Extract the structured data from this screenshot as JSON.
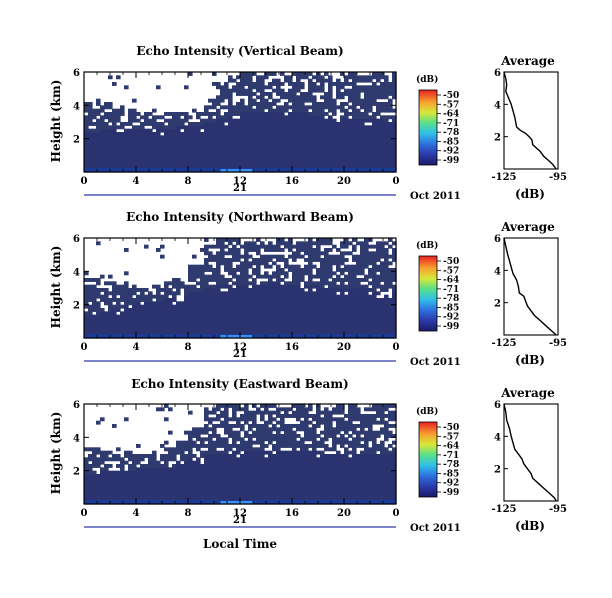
{
  "chart_data": [
    {
      "type": "heatmap",
      "title": "Echo Intensity (Vertical Beam)",
      "ylabel": "Height (km)",
      "x_ticks": [
        "0",
        "4",
        "8",
        "12",
        "16",
        "20",
        "0"
      ],
      "y_ticks": [
        "6",
        "4",
        "2"
      ],
      "xlim": [
        0,
        24
      ],
      "ylim": [
        0,
        6
      ],
      "date_label": "21",
      "month_label": "Oct 2011",
      "colorbar": {
        "title": "(dB)",
        "ticks": [
          "-50",
          "-57",
          "-64",
          "-71",
          "-78",
          "-85",
          "-92",
          "-99"
        ]
      },
      "profile": {
        "title": "Average",
        "xlabel": "(dB)",
        "x_ticks": [
          "-125",
          "-95"
        ],
        "y_ticks": [
          "6",
          "4",
          "2"
        ],
        "xlim": [
          -125,
          -95
        ],
        "points": [
          [
            -125,
            6.0
          ],
          [
            -124,
            5.6
          ],
          [
            -123.5,
            5.2
          ],
          [
            -124,
            4.8
          ],
          [
            -122.5,
            4.4
          ],
          [
            -121,
            4.0
          ],
          [
            -120,
            3.6
          ],
          [
            -119,
            3.2
          ],
          [
            -118.5,
            2.9
          ],
          [
            -118,
            2.6
          ],
          [
            -116,
            2.4
          ],
          [
            -113,
            2.2
          ],
          [
            -111,
            2.0
          ],
          [
            -109.5,
            1.8
          ],
          [
            -109,
            1.5
          ],
          [
            -107,
            1.3
          ],
          [
            -105,
            1.1
          ],
          [
            -103,
            0.8
          ],
          [
            -100,
            0.5
          ],
          [
            -98,
            0.3
          ],
          [
            -96,
            0.0
          ]
        ]
      },
      "echo_tops_km": [
        4.2,
        4.0,
        3.8,
        3.9,
        3.6,
        3.4,
        3.6,
        3.5,
        3.9,
        4.3,
        5.3,
        5.8,
        6.0,
        6.0,
        6.0,
        6.0,
        6.0,
        6.0,
        6.0,
        6.0,
        6.0,
        5.8,
        6.0,
        6.0
      ],
      "layer_top_km": [
        2.4,
        2.5,
        2.6,
        2.6,
        2.5,
        2.6,
        2.6,
        2.7,
        2.8,
        3.0,
        3.2,
        3.4,
        3.5,
        3.6,
        3.6,
        3.5,
        3.5,
        3.4,
        3.4,
        3.3,
        3.3,
        3.2,
        3.2,
        3.1
      ]
    },
    {
      "type": "heatmap",
      "title": "Echo Intensity (Northward Beam)",
      "ylabel": "Height (km)",
      "x_ticks": [
        "0",
        "4",
        "8",
        "12",
        "16",
        "20",
        "0"
      ],
      "y_ticks": [
        "6",
        "4",
        "2"
      ],
      "xlim": [
        0,
        24
      ],
      "ylim": [
        0,
        6
      ],
      "date_label": "21",
      "month_label": "Oct 2011",
      "colorbar": {
        "title": "(dB)",
        "ticks": [
          "-50",
          "-57",
          "-64",
          "-71",
          "-78",
          "-85",
          "-92",
          "-99"
        ]
      },
      "profile": {
        "title": "Average",
        "xlabel": "(dB)",
        "x_ticks": [
          "-125",
          "-95"
        ],
        "y_ticks": [
          "6",
          "4",
          "2"
        ],
        "xlim": [
          -125,
          -95
        ],
        "points": [
          [
            -125,
            6.0
          ],
          [
            -124,
            5.5
          ],
          [
            -123,
            5.0
          ],
          [
            -122,
            4.6
          ],
          [
            -121,
            4.2
          ],
          [
            -120,
            3.8
          ],
          [
            -118,
            3.4
          ],
          [
            -117,
            3.0
          ],
          [
            -116.5,
            2.6
          ],
          [
            -114,
            2.4
          ],
          [
            -113,
            2.1
          ],
          [
            -112,
            1.8
          ],
          [
            -110,
            1.5
          ],
          [
            -108,
            1.2
          ],
          [
            -105,
            0.9
          ],
          [
            -102,
            0.6
          ],
          [
            -99,
            0.3
          ],
          [
            -96,
            0.0
          ]
        ]
      },
      "echo_tops_km": [
        3.6,
        3.4,
        3.2,
        3.3,
        3.0,
        3.2,
        3.4,
        3.6,
        4.4,
        5.6,
        6.0,
        6.0,
        5.8,
        6.0,
        6.0,
        6.0,
        5.8,
        6.0,
        6.0,
        5.6,
        5.9,
        6.0,
        5.8,
        6.0
      ],
      "layer_top_km": [
        1.4,
        1.6,
        1.8,
        2.0,
        2.1,
        2.2,
        2.4,
        2.6,
        2.8,
        3.0,
        3.2,
        3.3,
        3.2,
        3.3,
        3.4,
        3.3,
        3.2,
        3.2,
        3.1,
        3.0,
        2.9,
        2.9,
        2.8,
        2.7
      ]
    },
    {
      "type": "heatmap",
      "title": "Echo Intensity (Eastward Beam)",
      "ylabel": "Height (km)",
      "x_ticks": [
        "0",
        "4",
        "8",
        "12",
        "16",
        "20",
        "0"
      ],
      "y_ticks": [
        "6",
        "4",
        "2"
      ],
      "xlim": [
        0,
        24
      ],
      "ylim": [
        0,
        6
      ],
      "date_label": "21",
      "month_label": "Oct 2011",
      "xlabel": "Local Time",
      "colorbar": {
        "title": "(dB)",
        "ticks": [
          "-50",
          "-57",
          "-64",
          "-71",
          "-78",
          "-85",
          "-92",
          "-99"
        ]
      },
      "profile": {
        "title": "Average",
        "xlabel": "(dB)",
        "x_ticks": [
          "-125",
          "-95"
        ],
        "y_ticks": [
          "6",
          "4",
          "2"
        ],
        "xlim": [
          -125,
          -95
        ],
        "points": [
          [
            -125,
            6.0
          ],
          [
            -124,
            5.5
          ],
          [
            -123.5,
            5.0
          ],
          [
            -122,
            4.5
          ],
          [
            -121,
            4.0
          ],
          [
            -120,
            3.6
          ],
          [
            -119,
            3.2
          ],
          [
            -117,
            2.9
          ],
          [
            -115,
            2.6
          ],
          [
            -114,
            2.3
          ],
          [
            -112,
            2.0
          ],
          [
            -110,
            1.7
          ],
          [
            -109,
            1.4
          ],
          [
            -106,
            1.1
          ],
          [
            -103,
            0.8
          ],
          [
            -100,
            0.5
          ],
          [
            -97,
            0.2
          ],
          [
            -96,
            0.0
          ]
        ]
      },
      "echo_tops_km": [
        3.4,
        3.2,
        3.0,
        3.2,
        3.0,
        3.2,
        3.4,
        3.8,
        4.6,
        5.8,
        6.0,
        6.0,
        6.0,
        6.0,
        6.0,
        5.8,
        6.0,
        6.0,
        5.8,
        6.0,
        6.0,
        5.8,
        6.0,
        6.0
      ],
      "layer_top_km": [
        1.8,
        1.9,
        2.0,
        2.0,
        2.1,
        2.2,
        2.3,
        2.5,
        2.7,
        2.9,
        3.1,
        3.2,
        3.3,
        3.2,
        3.3,
        3.3,
        3.2,
        3.2,
        3.1,
        3.1,
        3.0,
        3.0,
        2.9,
        2.9
      ]
    }
  ],
  "colors": {
    "background": "#2f3a6e",
    "layer": "#2a3270",
    "surface": "#1a3a96",
    "hot": "#3b8ff0"
  }
}
